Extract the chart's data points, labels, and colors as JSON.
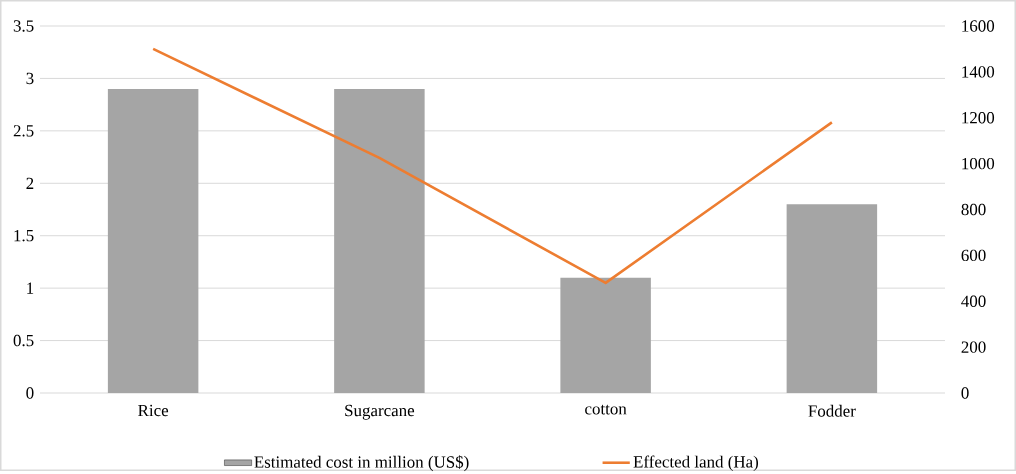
{
  "chart_data": {
    "type": "bar",
    "categories": [
      "Rice",
      "Sugarcane",
      "cotton",
      "Fodder"
    ],
    "series": [
      {
        "name": "Estimated cost in million (US$)",
        "color": "#a5a5a5",
        "values": [
          2.9,
          2.9,
          1.1,
          1.8
        ]
      },
      {
        "name": "Effected land (Ha)",
        "type": "line",
        "axis": "y2",
        "color": "#ed7d31",
        "values": [
          1500,
          1025,
          480,
          1180
        ]
      }
    ],
    "ylim": [
      0,
      3.5
    ],
    "yticks": [
      0,
      0.5,
      1,
      1.5,
      2,
      2.5,
      3,
      3.5
    ],
    "y2lim": [
      0,
      1600
    ],
    "y2ticks": [
      0,
      200,
      400,
      600,
      800,
      1000,
      1200,
      1400,
      1600
    ],
    "grid": "y",
    "legend": "bottom",
    "marker": "none"
  }
}
